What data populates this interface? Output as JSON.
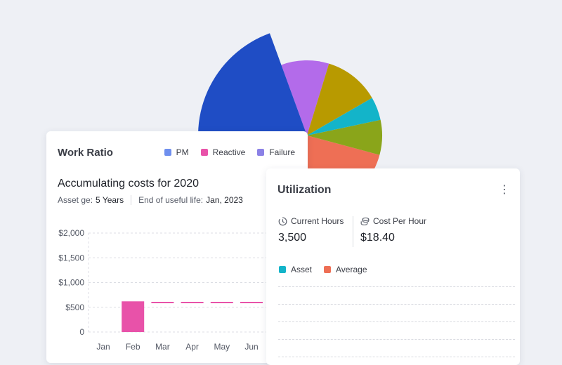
{
  "pie": {
    "colors": [
      "#1f4dc5",
      "#b36bea",
      "#b89a00",
      "#13b4c9",
      "#8aa51a",
      "#ee6f55"
    ]
  },
  "work_ratio": {
    "title": "Work Ratio",
    "legend": [
      {
        "label": "PM",
        "color": "#6f8fee"
      },
      {
        "label": "Reactive",
        "color": "#e852a9"
      },
      {
        "label": "Failure",
        "color": "#8b81e6"
      }
    ],
    "subtitle": "Accumulating costs for 2020",
    "asset_age_label": "Asset ge:",
    "asset_age_value": "5 Years",
    "end_life_label": "End of useful life:",
    "end_life_value": "Jan, 2023"
  },
  "chart_data": {
    "type": "bar",
    "categories": [
      "Jan",
      "Feb",
      "Mar",
      "Apr",
      "May",
      "Jun"
    ],
    "y_tick_labels": [
      "$2,000",
      "$1,500",
      "$1,000",
      "$500",
      "0"
    ],
    "ylim": [
      0,
      2000
    ],
    "series": [
      {
        "name": "Reactive",
        "color": "#e852a9",
        "values": [
          0,
          620,
          600,
          600,
          600,
          600
        ]
      }
    ],
    "grid": true
  },
  "utilization": {
    "title": "Utilization",
    "menu_icon": "more-vertical-icon",
    "current_hours_label": "Current Hours",
    "current_hours_value": "3,500",
    "cost_per_hour_label": "Cost Per Hour",
    "cost_per_hour_value": "$18.40",
    "legend": [
      {
        "label": "Asset",
        "color": "#13b4c9"
      },
      {
        "label": "Average",
        "color": "#ee6f55"
      }
    ]
  }
}
